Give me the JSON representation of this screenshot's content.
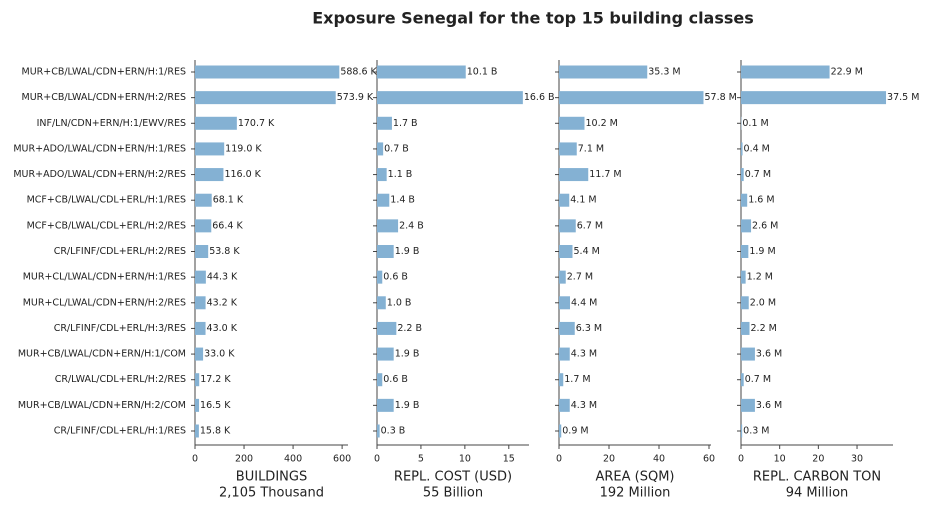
{
  "chart_data": {
    "type": "bar",
    "orientation": "horizontal",
    "title": "Exposure Senegal for the top 15 building classes",
    "color": "#84b1d3",
    "categories": [
      "MUR+CB/LWAL/CDN+ERN/H:1/RES",
      "MUR+CB/LWAL/CDN+ERN/H:2/RES",
      "INF/LN/CDN+ERN/H:1/EWV/RES",
      "MUR+ADO/LWAL/CDN+ERN/H:1/RES",
      "MUR+ADO/LWAL/CDN+ERN/H:2/RES",
      "MCF+CB/LWAL/CDL+ERL/H:1/RES",
      "MCF+CB/LWAL/CDL+ERL/H:2/RES",
      "CR/LFINF/CDL+ERL/H:2/RES",
      "MUR+CL/LWAL/CDN+ERN/H:1/RES",
      "MUR+CL/LWAL/CDN+ERN/H:2/RES",
      "CR/LFINF/CDL+ERL/H:3/RES",
      "MUR+CB/LWAL/CDN+ERN/H:1/COM",
      "CR/LWAL/CDL+ERL/H:2/RES",
      "MUR+CB/LWAL/CDN+ERN/H:2/COM",
      "CR/LFINF/CDL+ERL/H:1/RES"
    ],
    "panels": [
      {
        "xlabel": "BUILDINGS",
        "total_label": "2,105 Thousand",
        "values": [
          588.6,
          573.9,
          170.7,
          119.0,
          116.0,
          68.1,
          66.4,
          53.8,
          44.3,
          43.2,
          43.0,
          33.0,
          17.2,
          16.5,
          15.8
        ],
        "value_labels": [
          "588.6 K",
          "573.9 K",
          "170.7 K",
          "119.0 K",
          "116.0 K",
          "68.1 K",
          "66.4 K",
          "53.8 K",
          "44.3 K",
          "43.2 K",
          "43.0 K",
          "33.0 K",
          "17.2 K",
          "16.5 K",
          "15.8 K"
        ],
        "xlim": [
          0,
          624
        ],
        "xticks": [
          0,
          200,
          400,
          600
        ]
      },
      {
        "xlabel": "REPL. COST (USD)",
        "total_label": "55 Billion",
        "values": [
          10.1,
          16.6,
          1.7,
          0.7,
          1.1,
          1.4,
          2.4,
          1.9,
          0.6,
          1.0,
          2.2,
          1.9,
          0.6,
          1.9,
          0.3
        ],
        "value_labels": [
          "10.1 B",
          "16.6 B",
          "1.7 B",
          "0.7 B",
          "1.1 B",
          "1.4 B",
          "2.4 B",
          "1.9 B",
          "0.6 B",
          "1.0 B",
          "2.2 B",
          "1.9 B",
          "0.6 B",
          "1.9 B",
          "0.3 B"
        ],
        "xlim": [
          0,
          17.3
        ],
        "xticks": [
          0,
          5,
          10,
          15
        ]
      },
      {
        "xlabel": "AREA (SQM)",
        "total_label": "192 Million",
        "values": [
          35.3,
          57.8,
          10.2,
          7.1,
          11.7,
          4.1,
          6.7,
          5.4,
          2.7,
          4.4,
          6.3,
          4.3,
          1.7,
          4.3,
          0.9
        ],
        "value_labels": [
          "35.3 M",
          "57.8 M",
          "10.2 M",
          "7.1 M",
          "11.7 M",
          "4.1 M",
          "6.7 M",
          "5.4 M",
          "2.7 M",
          "4.4 M",
          "6.3 M",
          "4.3 M",
          "1.7 M",
          "4.3 M",
          "0.9 M"
        ],
        "xlim": [
          0,
          60.8
        ],
        "xticks": [
          0,
          20,
          40,
          60
        ]
      },
      {
        "xlabel": "REPL. CARBON TON",
        "total_label": "94 Million",
        "values": [
          22.9,
          37.5,
          0.1,
          0.4,
          0.7,
          1.6,
          2.6,
          1.9,
          1.2,
          2.0,
          2.2,
          3.6,
          0.7,
          3.6,
          0.3
        ],
        "value_labels": [
          "22.9 M",
          "37.5 M",
          "0.1 M",
          "0.4 M",
          "0.7 M",
          "1.6 M",
          "2.6 M",
          "1.9 M",
          "1.2 M",
          "2.0 M",
          "2.2 M",
          "3.6 M",
          "0.7 M",
          "3.6 M",
          "0.3 M"
        ],
        "xlim": [
          0,
          39.3
        ],
        "xticks": [
          0,
          10,
          20,
          30
        ]
      }
    ]
  }
}
